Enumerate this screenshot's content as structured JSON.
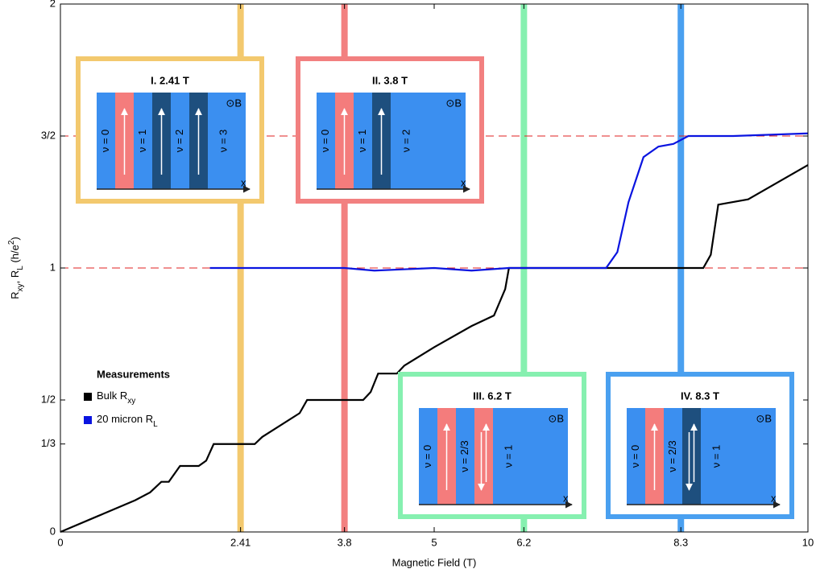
{
  "chart_data": {
    "type": "line",
    "xlabel": "Magnetic Field (T)",
    "ylabel": [
      {
        "text": "R"
      },
      {
        "text": "xy",
        "sub": true
      },
      {
        "text": ", R"
      },
      {
        "text": "L",
        "sub": true
      },
      {
        "text": " (h/e"
      },
      {
        "text": "2",
        "sup": true
      },
      {
        "text": ")"
      }
    ],
    "xlim": [
      0,
      10
    ],
    "ylim": [
      0,
      2
    ],
    "xticks": [
      0,
      2.41,
      3.8,
      5,
      6.2,
      8.3,
      10
    ],
    "yticks": [
      0,
      {
        "value": 0.3333,
        "label": "1/3"
      },
      {
        "value": 0.5,
        "label": "1/2"
      },
      1,
      {
        "value": 1.5,
        "label": "3/2"
      },
      2
    ],
    "hlines": {
      "color": "#e02020",
      "values": [
        1,
        1.5
      ]
    },
    "legend_title": "Measurements",
    "series": [
      {
        "name": [
          {
            "text": "Bulk R"
          },
          {
            "text": "xy",
            "sub": true
          }
        ],
        "color": "#000000",
        "x": [
          0,
          0.5,
          1.0,
          1.2,
          1.35,
          1.45,
          1.6,
          1.85,
          1.95,
          2.05,
          2.6,
          2.7,
          3.2,
          3.3,
          4.05,
          4.15,
          4.25,
          4.5,
          4.6,
          5.0,
          5.5,
          5.8,
          5.95,
          6.0,
          8.6,
          8.7,
          8.8,
          9.2,
          10
        ],
        "values": [
          0,
          0.06,
          0.12,
          0.15,
          0.19,
          0.19,
          0.25,
          0.25,
          0.27,
          0.333,
          0.333,
          0.36,
          0.45,
          0.5,
          0.5,
          0.53,
          0.6,
          0.6,
          0.63,
          0.7,
          0.78,
          0.82,
          0.92,
          1,
          1,
          1.05,
          1.24,
          1.26,
          1.39
        ]
      },
      {
        "name": [
          {
            "text": "20 micron R"
          },
          {
            "text": "L",
            "sub": true
          }
        ],
        "color": "#0a14e0",
        "x": [
          2,
          3,
          3.8,
          4.2,
          5,
          5.5,
          6,
          7,
          7.3,
          7.45,
          7.6,
          7.8,
          8.0,
          8.2,
          8.4,
          9,
          10
        ],
        "values": [
          1,
          1,
          1,
          0.99,
          1,
          0.99,
          1,
          1,
          1,
          1.06,
          1.25,
          1.42,
          1.46,
          1.47,
          1.5,
          1.5,
          1.51
        ]
      }
    ],
    "markers": [
      {
        "x": 2.41,
        "color": "#f3c96e"
      },
      {
        "x": 3.8,
        "color": "#f28080"
      },
      {
        "x": 6.2,
        "color": "#86f0b0"
      },
      {
        "x": 8.3,
        "color": "#4aa0f0"
      }
    ],
    "insets": [
      {
        "title": "I. 2.41 T",
        "color": "#f3c96e",
        "field": "⊙B",
        "axis": "x",
        "bands": [
          {
            "label": "ν = 0"
          },
          {
            "edge": "#f47c7c",
            "arrows": "up"
          },
          {
            "label": "ν = 1"
          },
          {
            "edge": "#1e4f7e",
            "arrows": "up"
          },
          {
            "label": "ν = 2"
          },
          {
            "edge": "#1e4f7e",
            "arrows": "up"
          },
          {
            "label": "ν = 3"
          }
        ]
      },
      {
        "title": "II. 3.8 T",
        "color": "#f28080",
        "field": "⊙B",
        "axis": "x",
        "bands": [
          {
            "label": "ν = 0"
          },
          {
            "edge": "#f47c7c",
            "arrows": "up"
          },
          {
            "label": "ν = 1"
          },
          {
            "edge": "#1e4f7e",
            "arrows": "up"
          },
          {
            "label": "ν = 2"
          }
        ]
      },
      {
        "title": "III. 6.2 T",
        "color": "#86f0b0",
        "field": "⊙B",
        "axis": "x",
        "bands": [
          {
            "label": "ν = 0"
          },
          {
            "edge": "#f47c7c",
            "arrows": "up"
          },
          {
            "label": "ν = 2/3"
          },
          {
            "edge": "#f47c7c",
            "arrows": "both"
          },
          {
            "label": "ν = 1"
          }
        ]
      },
      {
        "title": "IV. 8.3 T",
        "color": "#4aa0f0",
        "field": "⊙B",
        "axis": "x",
        "bands": [
          {
            "label": "ν = 0"
          },
          {
            "edge": "#f47c7c",
            "arrows": "up"
          },
          {
            "label": "ν = 2/3"
          },
          {
            "edge": "#1e4f7e",
            "arrows": "both"
          },
          {
            "label": "ν = 1"
          }
        ]
      }
    ]
  }
}
